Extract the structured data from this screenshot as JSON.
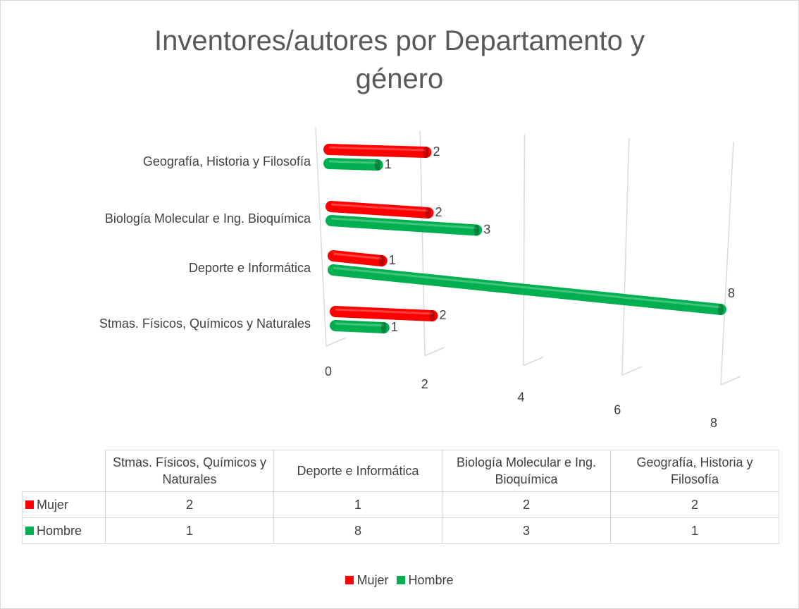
{
  "chart_data": {
    "type": "bar",
    "orientation": "horizontal",
    "title": "Inventores/autores por Departamento y género",
    "categories": [
      "Stmas. Físicos, Químicos y Naturales",
      "Deporte e Informática",
      "Biología Molecular e Ing. Bioquímica",
      "Geografía, Historia y Filosofía"
    ],
    "series": [
      {
        "name": "Mujer",
        "color": "#ff0000",
        "values": [
          2,
          1,
          2,
          2
        ]
      },
      {
        "name": "Hombre",
        "color": "#00b050",
        "values": [
          1,
          8,
          3,
          1
        ]
      }
    ],
    "xlim": [
      0,
      8
    ],
    "xticks": [
      0,
      2,
      4,
      6,
      8
    ],
    "grid": true,
    "legend": "bottom",
    "data_table": true
  }
}
